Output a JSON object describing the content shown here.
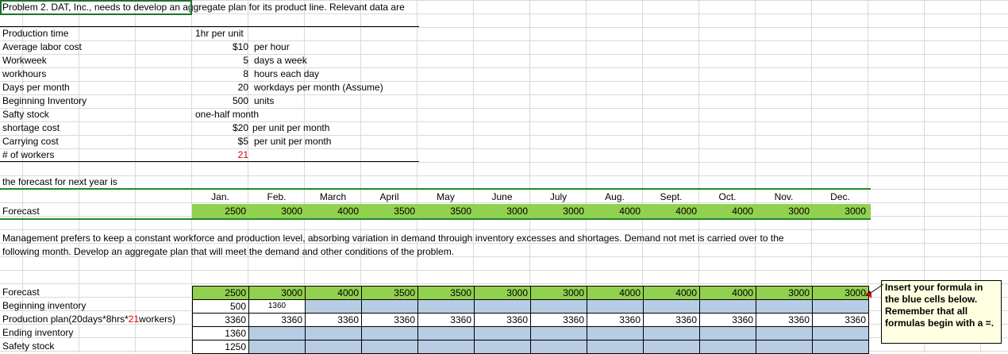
{
  "problem_title": "Problem 2. DAT, Inc., needs to develop an aggregate plan for its product line. Relevant data are",
  "params": [
    {
      "label": "Production time",
      "value": "1hr per unit",
      "unit": ""
    },
    {
      "label": "Average labor cost",
      "value": "$10",
      "unit": "per hour"
    },
    {
      "label": "Workweek",
      "value": "5",
      "unit": "days a week"
    },
    {
      "label": "workhours",
      "value": "8",
      "unit": "hours each day"
    },
    {
      "label": "Days per month",
      "value": "20",
      "unit": "workdays per month (Assume)"
    },
    {
      "label": "Beginning Inventory",
      "value": "500",
      "unit": "units"
    },
    {
      "label": "Safty stock",
      "value": "one-half month",
      "unit": ""
    },
    {
      "label": "shortage cost",
      "value": "$20",
      "unit": "per unit per month"
    },
    {
      "label": "Carrying cost",
      "value": "$5",
      "unit": "per unit per month"
    },
    {
      "label": "# of workers",
      "value": "21",
      "unit": ""
    }
  ],
  "forecast_title": "the forecast for next year is",
  "months": [
    "Jan.",
    "Feb.",
    "March",
    "April",
    "May",
    "June",
    "July",
    "Aug.",
    "Sept.",
    "Oct.",
    "Nov.",
    "Dec."
  ],
  "forecast_label": "Forecast",
  "forecast_values": [
    "2500",
    "3000",
    "4000",
    "3500",
    "3500",
    "3000",
    "3000",
    "4000",
    "4000",
    "4000",
    "3000",
    "3000"
  ],
  "paragraph_line1": "Management prefers to keep a constant workforce and production level, absorbing variation in demand throuigh inventory excesses and shortages. Demand not met is carried over to the",
  "paragraph_line2": "following month. Develop an aggregate plan that will meet the demand and other conditions of the problem.",
  "plan": {
    "forecast_label": "Forecast",
    "beginning_label": "Beginning inventory",
    "production_label_pre": "Production plan(20days*8hrs*",
    "production_label_red": "21",
    "production_label_post": "workers)",
    "ending_label": "Ending inventory",
    "safety_label": "Safety stock",
    "forecast": [
      "2500",
      "3000",
      "4000",
      "3500",
      "3500",
      "3000",
      "3000",
      "4000",
      "4000",
      "4000",
      "3000",
      "3000"
    ],
    "beginning": [
      "500",
      "1360",
      "",
      "",
      "",
      "",
      "",
      "",
      "",
      "",
      "",
      ""
    ],
    "production": [
      "3360",
      "3360",
      "3360",
      "3360",
      "3360",
      "3360",
      "3360",
      "3360",
      "3360",
      "3360",
      "3360",
      "3360"
    ],
    "ending": [
      "1360",
      "",
      "",
      "",
      "",
      "",
      "",
      "",
      "",
      "",
      "",
      ""
    ],
    "safety": [
      "1250",
      "",
      "",
      "",
      "",
      "",
      "",
      "",
      "",
      "",
      "",
      ""
    ]
  },
  "comment_note": "Insert your formula in the blue cells below. Remember that all formulas begin with a =.",
  "colors": {
    "green": "#92d050",
    "blue": "#b8cce4",
    "note_bg": "#ffffe1",
    "accent_red": "#e00000"
  }
}
